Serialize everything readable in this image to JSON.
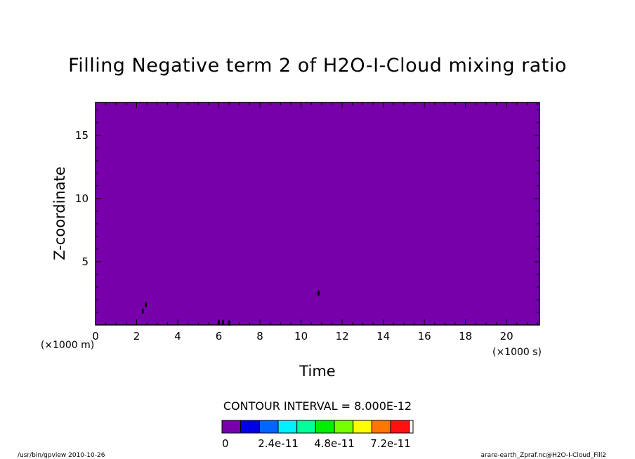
{
  "chart_data": {
    "type": "heatmap",
    "title": "Filling Negative term 2 of H2O-I-Cloud mixing ratio",
    "xlabel": "Time",
    "ylabel": "Z-coordinate",
    "xunit": "(×1000 s)",
    "yunit": "(×1000 m)",
    "xlim": [
      0,
      21.6
    ],
    "ylim": [
      0,
      17.6
    ],
    "xticks": [
      0,
      2,
      4,
      6,
      8,
      10,
      12,
      14,
      16,
      18,
      20
    ],
    "yticks": [
      5,
      10,
      15
    ],
    "field_color": "#7700aa",
    "contour_interval_text": "CONTOUR INTERVAL = 8.000E-12",
    "colorbar": {
      "colors": [
        "#7700aa",
        "#0000e6",
        "#0066ff",
        "#00f0ff",
        "#00ff99",
        "#00ee00",
        "#77ff00",
        "#ffff00",
        "#ff7700",
        "#ff1111"
      ],
      "labels": [
        "0",
        "2.4e-11",
        "4.8e-11",
        "7.2e-11"
      ],
      "label_values": [
        0,
        2.4e-11,
        4.8e-11,
        7.2e-11
      ],
      "interval": 8e-12
    },
    "features": [
      {
        "x": 2.3,
        "y": 1.1
      },
      {
        "x": 2.45,
        "y": 1.6
      },
      {
        "x": 6.0,
        "y": 0.2
      },
      {
        "x": 6.2,
        "y": 0.2
      },
      {
        "x": 6.5,
        "y": 0.15
      },
      {
        "x": 10.85,
        "y": 2.5
      }
    ]
  },
  "footer": {
    "left": "/usr/bin/gpview  2010-10-26",
    "right": "arare-earth_Zpraf.nc@H2O-I-Cloud_Fill2"
  }
}
